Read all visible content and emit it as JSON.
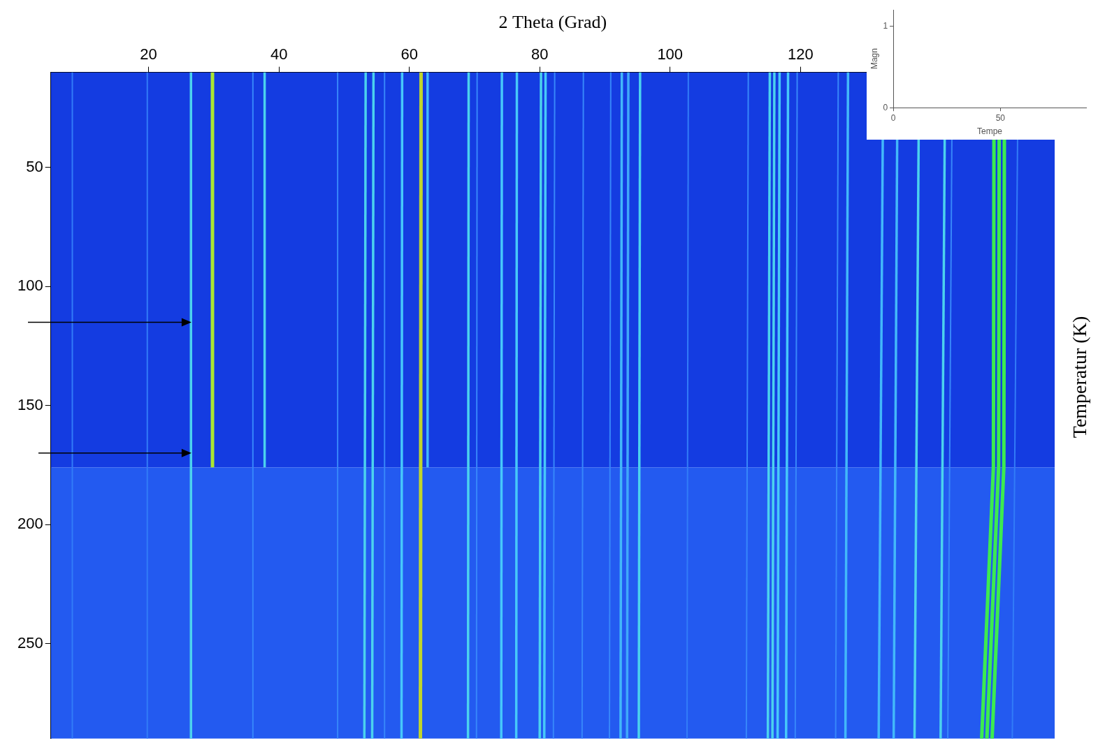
{
  "chart_data": [
    {
      "type": "heatmap",
      "x_label": "2 Theta (Grad)",
      "y_label": "Temperatur (K)",
      "xlim": [
        5,
        159
      ],
      "xticks": [
        20,
        40,
        60,
        80,
        100,
        120
      ],
      "ylim": [
        10,
        290
      ],
      "yticks": [
        50,
        100,
        150,
        200,
        250
      ],
      "grid": false,
      "background": [
        {
          "ylim": [
            10,
            176
          ],
          "intensity": 0
        },
        {
          "ylim": [
            176,
            290
          ],
          "intensity": 0.1
        }
      ],
      "lines": [
        {
          "x": [
            8.3,
            8.3
          ],
          "y": [
            10,
            290
          ],
          "intensity": 0.25
        },
        {
          "x": [
            19.8,
            19.8
          ],
          "y": [
            10,
            290
          ],
          "intensity": 0.25
        },
        {
          "x": [
            26.5,
            26.5
          ],
          "y": [
            10,
            290
          ],
          "intensity": 0.55
        },
        {
          "x": [
            29.8,
            29.8
          ],
          "y": [
            10,
            176
          ],
          "intensity": 0.9
        },
        {
          "x": [
            36.0,
            36.0
          ],
          "y": [
            10,
            290
          ],
          "intensity": 0.3
        },
        {
          "x": [
            37.8,
            37.8
          ],
          "y": [
            10,
            176
          ],
          "intensity": 0.55
        },
        {
          "x": [
            49.0,
            49.0
          ],
          "y": [
            10,
            290
          ],
          "intensity": 0.3
        },
        {
          "x": [
            53.3,
            53.1
          ],
          "y": [
            10,
            290
          ],
          "intensity": 0.55
        },
        {
          "x": [
            54.5,
            54.3
          ],
          "y": [
            10,
            290
          ],
          "intensity": 0.55
        },
        {
          "x": [
            56.2,
            56.2
          ],
          "y": [
            10,
            290
          ],
          "intensity": 0.3
        },
        {
          "x": [
            58.9,
            58.8
          ],
          "y": [
            10,
            290
          ],
          "intensity": 0.5
        },
        {
          "x": [
            61.8,
            61.7
          ],
          "y": [
            10,
            290
          ],
          "intensity": 0.95
        },
        {
          "x": [
            62.8,
            62.8
          ],
          "y": [
            10,
            176
          ],
          "intensity": 0.45
        },
        {
          "x": [
            69.1,
            69.0
          ],
          "y": [
            10,
            290
          ],
          "intensity": 0.55
        },
        {
          "x": [
            70.4,
            70.3
          ],
          "y": [
            10,
            290
          ],
          "intensity": 0.3
        },
        {
          "x": [
            74.2,
            74.1
          ],
          "y": [
            10,
            290
          ],
          "intensity": 0.5
        },
        {
          "x": [
            76.5,
            76.4
          ],
          "y": [
            10,
            290
          ],
          "intensity": 0.5
        },
        {
          "x": [
            80.2,
            80.0
          ],
          "y": [
            10,
            290
          ],
          "intensity": 0.55
        },
        {
          "x": [
            80.9,
            80.7
          ],
          "y": [
            10,
            290
          ],
          "intensity": 0.5
        },
        {
          "x": [
            82.3,
            82.1
          ],
          "y": [
            10,
            290
          ],
          "intensity": 0.3
        },
        {
          "x": [
            86.7,
            86.5
          ],
          "y": [
            10,
            290
          ],
          "intensity": 0.3
        },
        {
          "x": [
            90.9,
            90.7
          ],
          "y": [
            10,
            290
          ],
          "intensity": 0.3
        },
        {
          "x": [
            92.6,
            92.4
          ],
          "y": [
            10,
            290
          ],
          "intensity": 0.45
        },
        {
          "x": [
            93.6,
            93.4
          ],
          "y": [
            10,
            290
          ],
          "intensity": 0.4
        },
        {
          "x": [
            95.4,
            95.2
          ],
          "y": [
            10,
            290
          ],
          "intensity": 0.55
        },
        {
          "x": [
            102.8,
            102.6
          ],
          "y": [
            10,
            290
          ],
          "intensity": 0.25
        },
        {
          "x": [
            112.0,
            111.7
          ],
          "y": [
            10,
            290
          ],
          "intensity": 0.3
        },
        {
          "x": [
            115.3,
            115.0
          ],
          "y": [
            10,
            290
          ],
          "intensity": 0.55
        },
        {
          "x": [
            116.0,
            115.7
          ],
          "y": [
            10,
            290
          ],
          "intensity": 0.55
        },
        {
          "x": [
            116.8,
            116.5
          ],
          "y": [
            10,
            290
          ],
          "intensity": 0.5
        },
        {
          "x": [
            118.1,
            117.8
          ],
          "y": [
            10,
            290
          ],
          "intensity": 0.5
        },
        {
          "x": [
            119.5,
            119.2
          ],
          "y": [
            10,
            290
          ],
          "intensity": 0.3
        },
        {
          "x": [
            125.8,
            125.4
          ],
          "y": [
            10,
            290
          ],
          "intensity": 0.3
        },
        {
          "x": [
            127.3,
            126.9
          ],
          "y": [
            10,
            290
          ],
          "intensity": 0.45
        },
        {
          "x": [
            132.7,
            132.0
          ],
          "y": [
            10,
            290
          ],
          "intensity": 0.45
        },
        {
          "x": [
            134.9,
            134.3
          ],
          "y": [
            10,
            290
          ],
          "intensity": 0.45
        },
        {
          "x": [
            138.2,
            137.5
          ],
          "y": [
            10,
            290
          ],
          "intensity": 0.55
        },
        {
          "x": [
            142.2,
            141.5
          ],
          "y": [
            10,
            290
          ],
          "intensity": 0.55
        },
        {
          "x": [
            143.3,
            142.6
          ],
          "y": [
            10,
            290
          ],
          "intensity": 0.3
        },
        {
          "x": [
            149.7,
            149.6,
            147.8
          ],
          "y": [
            10,
            176,
            290
          ],
          "intensity": 0.8
        },
        {
          "x": [
            150.5,
            150.4,
            148.6
          ],
          "y": [
            10,
            176,
            290
          ],
          "intensity": 0.8
        },
        {
          "x": [
            151.3,
            151.2,
            149.4
          ],
          "y": [
            10,
            176,
            290
          ],
          "intensity": 0.8
        },
        {
          "x": [
            153.4,
            152.5
          ],
          "y": [
            10,
            290
          ],
          "intensity": 0.25
        }
      ],
      "arrows": [
        {
          "x": 27,
          "y": 115
        },
        {
          "x": 27,
          "y": 170
        }
      ]
    },
    {
      "type": "line",
      "x_label": "Tempe",
      "y_label": "Magn",
      "xlim": [
        0,
        90
      ],
      "xticks": [
        0,
        50
      ],
      "ylim": [
        0,
        1.2
      ],
      "yticks": [
        0,
        1
      ],
      "grid": false,
      "series": []
    }
  ]
}
